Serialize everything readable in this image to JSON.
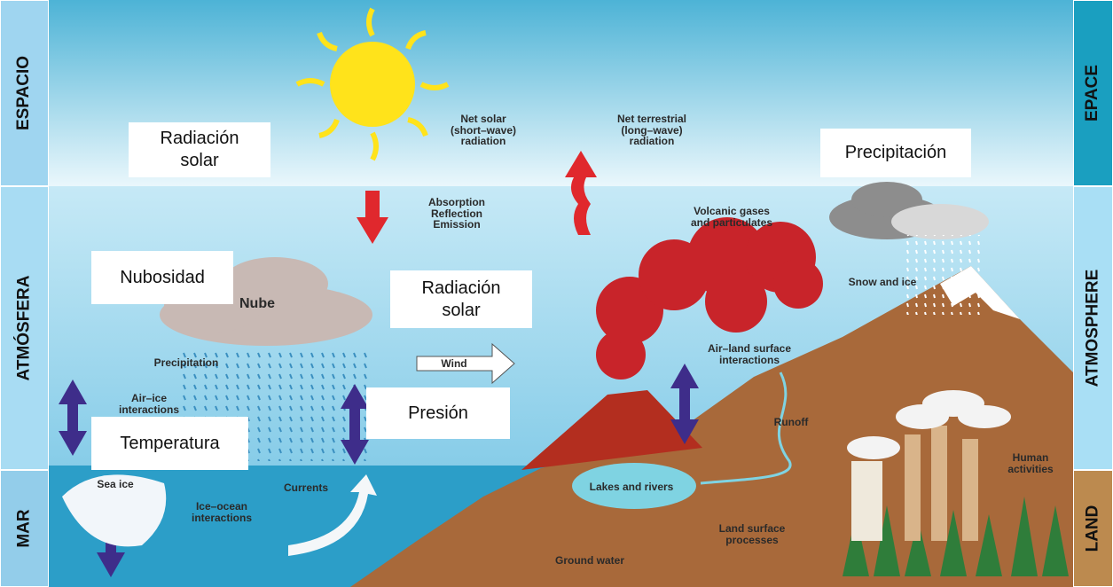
{
  "side_labels": {
    "left": [
      "ESPACIO",
      "ATMÓSFERA",
      "MAR"
    ],
    "right": [
      "EPACE",
      "ATMOSPHERE",
      "LAND"
    ]
  },
  "boxes": [
    "Radiación\nsolar",
    "Precipitación",
    "Nubosidad",
    "Radiación\nsolar",
    "Presión",
    "Temperatura"
  ],
  "labels": [
    "Net solar\n(short–wave)\nradiation",
    "Net terrestrial\n(long–wave)\nradiation",
    "Absorption\nReflection\nEmission",
    "Volcanic gases\nand particulates",
    "Nube",
    "Precipitation",
    "Wind",
    "Air–land surface\ninteractions",
    "Snow and ice",
    "Air–ice\ninteractions",
    "Runoff",
    "Sea ice",
    "Currents",
    "Ice–ocean\ninteractions",
    "Lakes and rivers",
    "Human\nactivities",
    "Land surface\nprocesses",
    "Ground water"
  ]
}
